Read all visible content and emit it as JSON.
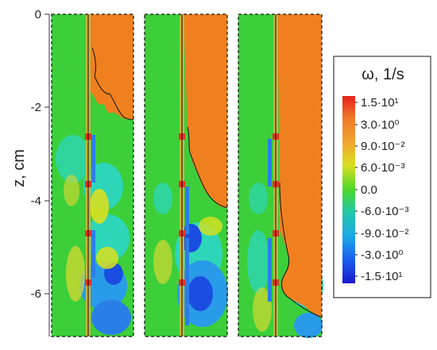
{
  "axis": {
    "title": "z, cm",
    "ticks": [
      {
        "value": 0,
        "label": "0"
      },
      {
        "value": -2,
        "label": "-2"
      },
      {
        "value": -4,
        "label": "-4"
      },
      {
        "value": -6,
        "label": "-6"
      }
    ],
    "range": [
      -8.5,
      0
    ]
  },
  "colorbar": {
    "title": "ω, 1/s",
    "labels": [
      "1.5·10¹",
      "3.0·10⁰",
      "9.0·10⁻²",
      "6.0·10⁻³",
      "0.0",
      "-6.0·10⁻³",
      "-9.0·10⁻²",
      "-3.0·10⁰",
      "-1.5·10¹"
    ],
    "colors": [
      "#e8201a",
      "#f07a2a",
      "#f2a530",
      "#d9e020",
      "#4cd82a",
      "#22c8a8",
      "#1aa8e8",
      "#1860f0",
      "#1a1acc"
    ]
  },
  "panels": [
    {
      "name": "panel-1",
      "front_depth": -2.3
    },
    {
      "name": "panel-2",
      "front_depth": -4.2
    },
    {
      "name": "panel-3",
      "front_depth": -6.7
    }
  ],
  "colors": {
    "background_field": "#3ccf3a",
    "jet": "#f0801f",
    "wall": "#c8b43c",
    "positive_vortex": "#e8331f",
    "negative_vortex": "#2a7ee8",
    "cyan_region": "#2dd6b8"
  }
}
